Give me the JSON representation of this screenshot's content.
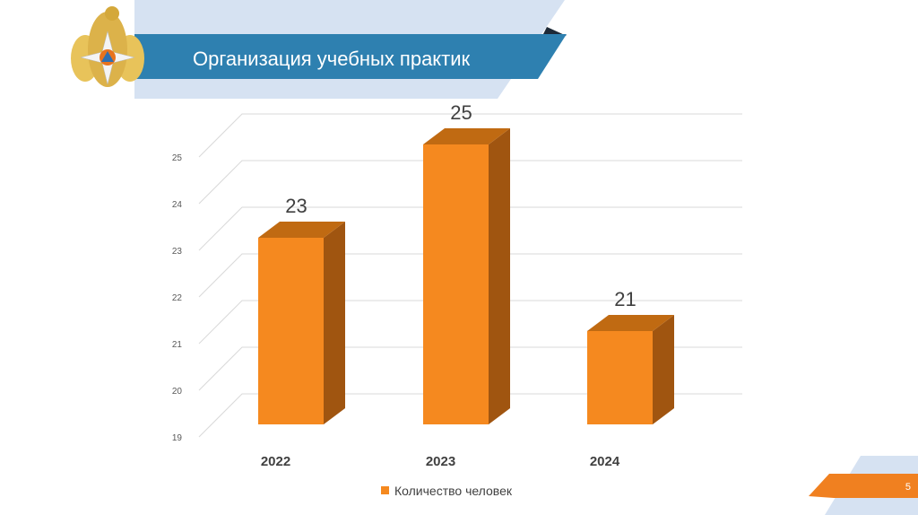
{
  "header": {
    "title": "Организация учебных практик"
  },
  "footer": {
    "page_number": "5"
  },
  "colors": {
    "bar_front": "#f5891f",
    "bar_side": "#a05510",
    "bar_top": "#c06a12",
    "header_band": "#2e7fae",
    "header_light": "#d6e2f2",
    "footer_band": "#f08020"
  },
  "icons": {
    "emblem": "emchs-emblem-icon"
  },
  "chart_data": {
    "type": "bar",
    "three_d": true,
    "categories": [
      "2022",
      "2023",
      "2024"
    ],
    "series": [
      {
        "name": "Количество человек",
        "values": [
          23,
          25,
          21
        ]
      }
    ],
    "ylim": [
      19,
      25
    ],
    "yticks": [
      "19",
      "20",
      "21",
      "22",
      "23",
      "24",
      "25"
    ],
    "data_labels": [
      "23",
      "25",
      "21"
    ],
    "grid": true,
    "legend": "bottom"
  }
}
